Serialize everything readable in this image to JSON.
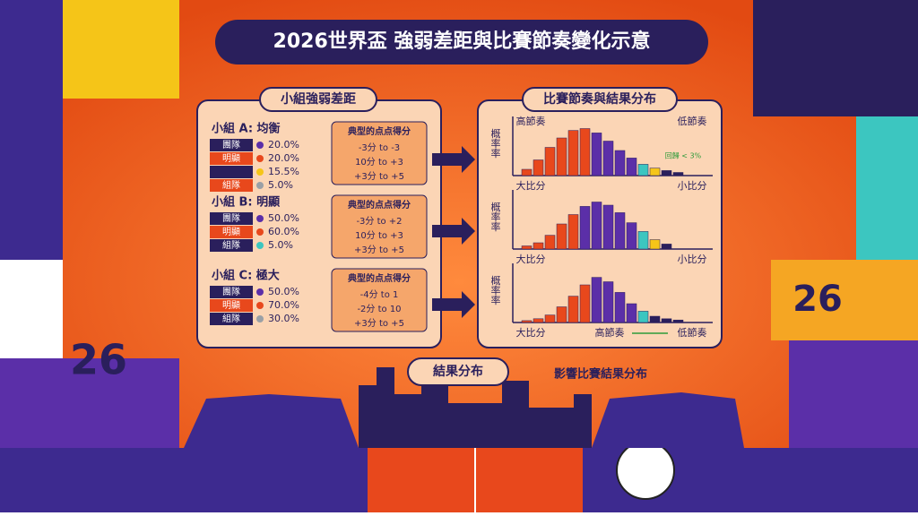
{
  "title": "2026世界盃 強弱差距與比賽節奏變化示意",
  "left_panel": {
    "title": "小組強弱差距",
    "score_header": "典型的点点得分",
    "groups": [
      {
        "title": "小組 A: 均衡",
        "rows": [
          {
            "label": "團隊",
            "color": "#5b2fa8",
            "pct": "20.0%"
          },
          {
            "label": "明顯",
            "color": "#e8481c",
            "pct": "20.0%"
          },
          {
            "label": null,
            "color": "#f5c518",
            "pct": "15.5%"
          },
          {
            "label": "組隊",
            "color": "#9aa0a6",
            "pct": "5.0%"
          }
        ],
        "scores": [
          "-3分 to -3",
          "10分 to +3",
          "+3分 to +5"
        ]
      },
      {
        "title": "小組 B: 明顯",
        "rows": [
          {
            "label": "團隊",
            "color": "#5b2fa8",
            "pct": "50.0%"
          },
          {
            "label": "明顯",
            "color": "#e8481c",
            "pct": "60.0%"
          },
          {
            "label": "組隊",
            "color": "#3cc6c0",
            "pct": "5.0%"
          }
        ],
        "scores": [
          "-3分 to +2",
          "10分 to +3",
          "+3分 to +5"
        ]
      },
      {
        "title": "小組 C: 極大",
        "rows": [
          {
            "label": "團隊",
            "color": "#5b2fa8",
            "pct": "50.0%"
          },
          {
            "label": "明顯",
            "color": "#e8481c",
            "pct": "70.0%"
          },
          {
            "label": "組隊",
            "color": "#9aa0a6",
            "pct": "30.0%"
          }
        ],
        "scores": [
          "-4分 to 1",
          "-2分 to 10",
          "+3分 to +5"
        ]
      }
    ]
  },
  "right_panel": {
    "title": "比賽節奏與結果分布",
    "charts": [
      {
        "y_label": "概率率",
        "top_labels": [
          "高節奏",
          "低節奏"
        ],
        "bottom_labels": [
          "大比分",
          "小比分"
        ],
        "note": "回歸 < 3%",
        "values": [
          10,
          25,
          45,
          60,
          72,
          75,
          68,
          55,
          40,
          28,
          18,
          12,
          8,
          5
        ],
        "colors": [
          "#e8481c",
          "#e8481c",
          "#e8481c",
          "#e8481c",
          "#e8481c",
          "#e8481c",
          "#5b2fa8",
          "#5b2fa8",
          "#5b2fa8",
          "#5b2fa8",
          "#3cc6c0",
          "#f5c518",
          "#2a1f5c",
          "#2a1f5c"
        ]
      },
      {
        "y_label": "概率率",
        "top_labels": [],
        "bottom_labels": [
          "大比分",
          "小比分"
        ],
        "values": [
          5,
          10,
          22,
          40,
          55,
          68,
          75,
          70,
          58,
          42,
          28,
          15,
          8
        ],
        "colors": [
          "#e8481c",
          "#e8481c",
          "#e8481c",
          "#e8481c",
          "#e8481c",
          "#5b2fa8",
          "#5b2fa8",
          "#5b2fa8",
          "#5b2fa8",
          "#5b2fa8",
          "#3cc6c0",
          "#f5c518",
          "#2a1f5c"
        ]
      },
      {
        "y_label": "概率率",
        "top_labels": [],
        "bottom_labels": [
          "大比分",
          "高節奏",
          "低節奏"
        ],
        "values": [
          3,
          6,
          12,
          25,
          42,
          60,
          72,
          65,
          48,
          30,
          18,
          10,
          6,
          4
        ],
        "colors": [
          "#e8481c",
          "#e8481c",
          "#e8481c",
          "#e8481c",
          "#e8481c",
          "#e8481c",
          "#5b2fa8",
          "#5b2fa8",
          "#5b2fa8",
          "#5b2fa8",
          "#3cc6c0",
          "#2a1f5c",
          "#2a1f5c",
          "#2a1f5c"
        ]
      }
    ]
  },
  "flow_label": "結果分布",
  "impact_label": "影響比賽結果分布",
  "decor": {
    "left_number": "26",
    "right_number": "26"
  }
}
